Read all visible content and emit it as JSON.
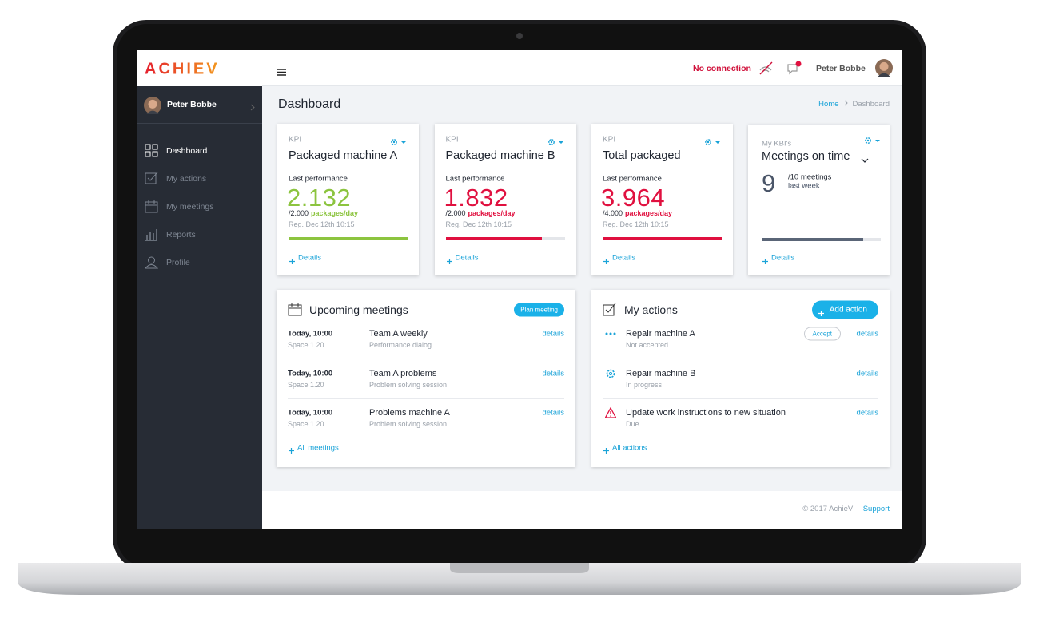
{
  "header": {
    "logo": "ACHIEV",
    "connection": "No connection",
    "user": "Peter Bobbe"
  },
  "sidebar": {
    "user": "Peter Bobbe",
    "menu": [
      "Dashboard",
      "My actions",
      "My meetings",
      "Reports",
      "Profile"
    ]
  },
  "page": {
    "title": "Dashboard",
    "breadcrumb": [
      "Home",
      "Dashboard"
    ]
  },
  "kpis": [
    {
      "label": "KPI",
      "title": "Packaged machine A",
      "caption": "Last performance",
      "value": "2.132",
      "target": "/2.000",
      "unit": "packages/day",
      "reg": "Reg. Dec 12th 10:15",
      "details": "Details",
      "color": "#8cc43f"
    },
    {
      "label": "KPI",
      "title": "Packaged machine B",
      "caption": "Last performance",
      "value": "1.832",
      "target": "/2.000",
      "unit": "packages/day",
      "reg": "Reg. Dec 12th 10:15",
      "details": "Details",
      "color": "#e0103f"
    },
    {
      "label": "KPI",
      "title": "Total packaged",
      "caption": "Last performance",
      "value": "3.964",
      "target": "/4.000",
      "unit": "packages/day",
      "reg": "Reg. Dec 12th 10:15",
      "details": "Details",
      "color": "#e0103f"
    }
  ],
  "kbi": {
    "label": "My KBI's",
    "title": "Meetings on time",
    "value": "9",
    "target": "/10 meetings",
    "period": "last week",
    "details": "Details"
  },
  "meetings": {
    "title": "Upcoming meetings",
    "button": "Plan meeting",
    "items": [
      {
        "time": "Today, 10:00",
        "room": "Space 1.20",
        "name": "Team A weekly",
        "type": "Performance dialog",
        "link": "details"
      },
      {
        "time": "Today, 10:00",
        "room": "Space 1.20",
        "name": "Team A problems",
        "type": "Problem solving session",
        "link": "details"
      },
      {
        "time": "Today, 10:00",
        "room": "Space 1.20",
        "name": "Problems machine A",
        "type": "Problem solving session",
        "link": "details"
      }
    ],
    "all": "All meetings"
  },
  "actions": {
    "title": "My actions",
    "button": "Add action",
    "items": [
      {
        "name": "Repair machine A",
        "status": "Not accepted",
        "accept": "Accept",
        "link": "details"
      },
      {
        "name": "Repair machine B",
        "status": "In progress",
        "link": "details"
      },
      {
        "name": "Update work instructions to new situation",
        "status": "Due",
        "link": "details"
      }
    ],
    "all": "All actions"
  },
  "footer": {
    "copyright": "© 2017 AchieV",
    "separator": "|",
    "support": "Support"
  }
}
